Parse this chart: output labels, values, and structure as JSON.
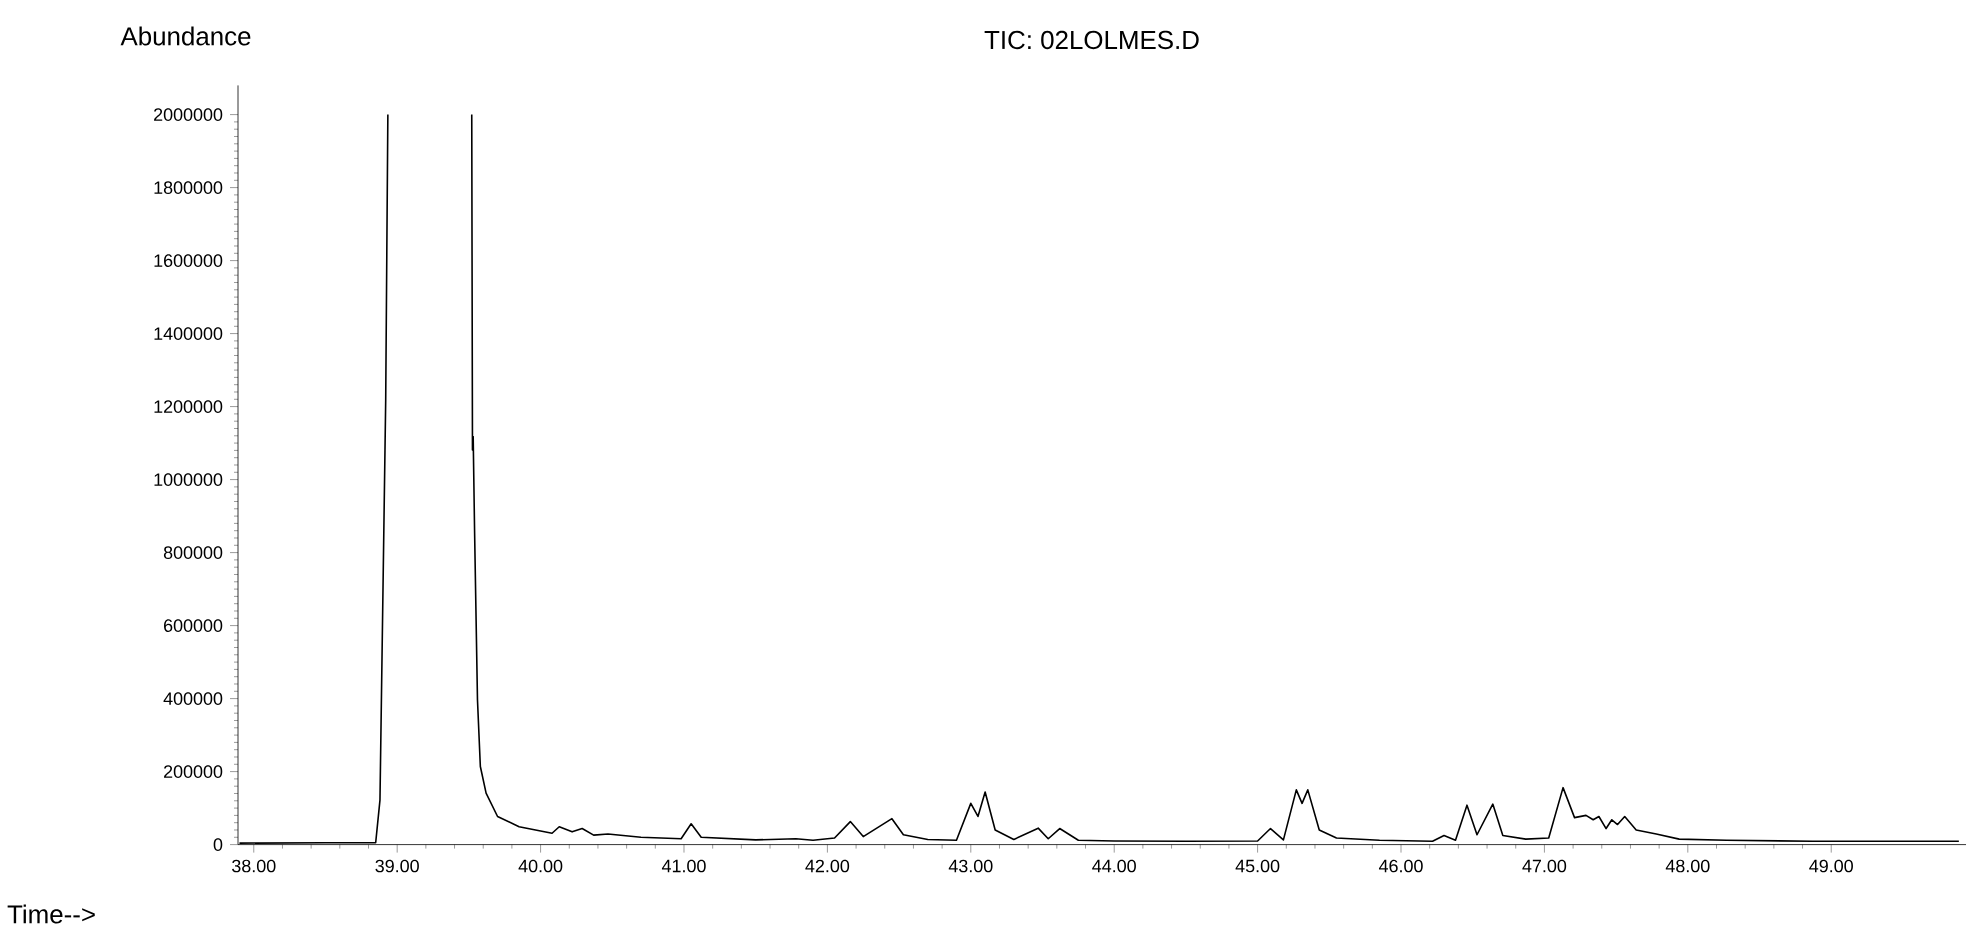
{
  "chart_data": {
    "type": "line",
    "title": "TIC: 02LOLMES.D",
    "xlabel": "Time-->",
    "ylabel": "Abundance",
    "x": [
      37.9,
      38.5,
      38.85,
      38.88,
      38.92,
      38.935,
      39.2,
      39.52,
      39.525,
      39.53,
      39.54,
      39.56,
      39.58,
      39.62,
      39.7,
      39.85,
      40.08,
      40.13,
      40.22,
      40.29,
      40.37,
      40.47,
      40.7,
      40.98,
      41.05,
      41.12,
      41.5,
      41.78,
      41.9,
      42.05,
      42.16,
      42.25,
      42.45,
      42.53,
      42.7,
      42.9,
      43.0,
      43.05,
      43.1,
      43.17,
      43.3,
      43.47,
      43.54,
      43.62,
      43.75,
      44.0,
      44.5,
      45.0,
      45.09,
      45.18,
      45.27,
      45.31,
      45.35,
      45.43,
      45.55,
      45.85,
      46.22,
      46.3,
      46.38,
      46.46,
      46.53,
      46.64,
      46.71,
      46.87,
      47.03,
      47.13,
      47.21,
      47.29,
      47.34,
      47.38,
      47.43,
      47.47,
      47.51,
      47.56,
      47.64,
      47.78,
      47.94,
      48.27,
      48.87,
      49.89
    ],
    "values": [
      4000,
      5000,
      5000,
      122000,
      1218000,
      2000000,
      null,
      2000000,
      1081000,
      1118000,
      853000,
      396000,
      214000,
      141000,
      77000,
      49000,
      31000,
      49000,
      35000,
      44000,
      26000,
      29000,
      20000,
      16000,
      57000,
      20000,
      13000,
      16000,
      12000,
      18000,
      63000,
      22000,
      71000,
      27000,
      14000,
      12000,
      113000,
      77000,
      144000,
      40000,
      14000,
      45000,
      16000,
      44000,
      12000,
      10000,
      9000,
      10000,
      44000,
      13000,
      150000,
      113000,
      150000,
      40000,
      18000,
      12000,
      9000,
      25000,
      12000,
      108000,
      27000,
      111000,
      25000,
      15000,
      18000,
      156000,
      74000,
      80000,
      68000,
      77000,
      44000,
      68000,
      55000,
      77000,
      40000,
      29000,
      15000,
      12000,
      9000,
      9000
    ],
    "color": "#000000",
    "line_style": "solid",
    "xlim": [
      37.89,
      49.94
    ],
    "ylim": [
      0,
      2080000
    ],
    "xticks": [
      {
        "value": 38,
        "label": "38.00"
      },
      {
        "value": 39,
        "label": "39.00"
      },
      {
        "value": 40,
        "label": "40.00"
      },
      {
        "value": 41,
        "label": "41.00"
      },
      {
        "value": 42,
        "label": "42.00"
      },
      {
        "value": 43,
        "label": "43.00"
      },
      {
        "value": 44,
        "label": "44.00"
      },
      {
        "value": 45,
        "label": "45.00"
      },
      {
        "value": 46,
        "label": "46.00"
      },
      {
        "value": 47,
        "label": "47.00"
      },
      {
        "value": 48,
        "label": "48.00"
      },
      {
        "value": 49,
        "label": "49.00"
      }
    ],
    "yticks": [
      0,
      200000,
      400000,
      600000,
      800000,
      1000000,
      1200000,
      1400000,
      1600000,
      1800000,
      2000000
    ],
    "grid": false
  }
}
